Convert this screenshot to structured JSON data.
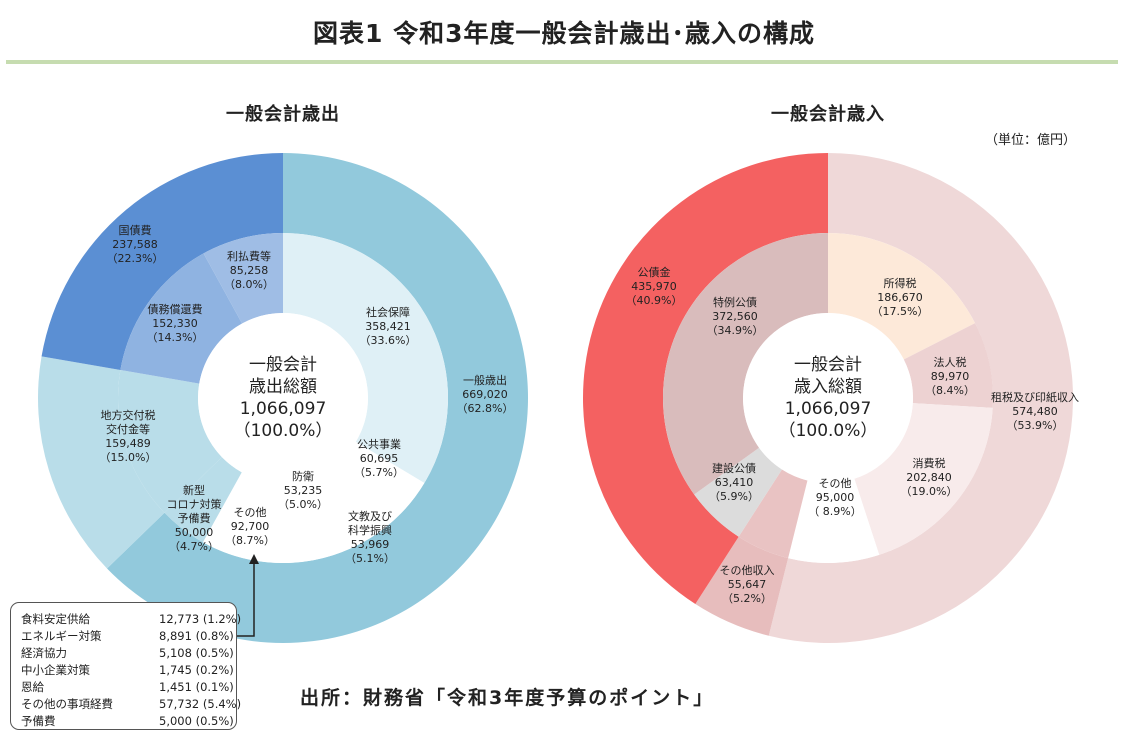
{
  "title": "図表1 令和3年度一般会計歳出･歳入の構成",
  "unit_note": "（単位：億円）",
  "source": "出所：財務省「令和3年度予算のポイント」",
  "colors": {
    "title_rule": "#c6dcb0",
    "exp_outer_general": "#92c9dc",
    "exp_outer_debt": "#5b8fd3",
    "exp_outer_local": "#b9dde9",
    "exp_inner_social": "#dff0f6",
    "exp_inner_interest": "#9fbde5",
    "exp_inner_debt_repay": "#8fb3e1",
    "exp_inner_local": "#b9dde9",
    "exp_inner_covid": "#b9dde9",
    "exp_inner_white": "#ffffff",
    "rev_outer_bonds": "#f46161",
    "rev_outer_tax": "#efd8d8",
    "rev_outer_other": "#e7bdbd",
    "rev_inner_special": "#d9bcbc",
    "rev_inner_income": "#fde9d9",
    "rev_inner_corp": "#edd2d2",
    "rev_inner_consumption": "#f8ebeb",
    "rev_inner_other_tax": "#ffffff",
    "rev_inner_other_rev": "#e9c3c3",
    "rev_inner_construction": "#dcdcdc"
  },
  "chart_data": [
    {
      "type": "pie",
      "title": "一般会計歳出",
      "center": {
        "line1": "一般会計",
        "line2": "歳出総額",
        "value": "1,066,097",
        "pct": "（100.0%）"
      },
      "outer": [
        {
          "name": "一般歳出",
          "value": 669020,
          "value_label": "669,020",
          "pct": "（62.8%）",
          "color": "#92c9dc"
        },
        {
          "name": "地方交付税交付金等",
          "value": 159489,
          "value_label": "159,489",
          "pct": "（15.0%）",
          "color": "#b9dde9"
        },
        {
          "name": "国債費",
          "value": 237588,
          "value_label": "237,588",
          "pct": "（22.3%）",
          "color": "#5b8fd3"
        }
      ],
      "inner": [
        {
          "name": "社会保障",
          "value": 358421,
          "value_label": "358,421",
          "pct": "（33.6%）",
          "color": "#dff0f6"
        },
        {
          "name": "公共事業",
          "value": 60695,
          "value_label": "60,695",
          "pct": "（5.7%）",
          "color": "#ffffff"
        },
        {
          "name": "文教及び科学振興",
          "value": 53969,
          "value_label": "53,969",
          "pct": "（5.1%）",
          "color": "#ffffff"
        },
        {
          "name": "防衛",
          "value": 53235,
          "value_label": "53,235",
          "pct": "（5.0%）",
          "color": "#ffffff"
        },
        {
          "name": "その他",
          "value": 92700,
          "value_label": "92,700",
          "pct": "（8.7%）",
          "color": "#ffffff"
        },
        {
          "name": "新型コロナ対策予備費",
          "value": 50000,
          "value_label": "50,000",
          "pct": "（4.7%）",
          "color": "#b9dde9"
        },
        {
          "name": "地方交付税交付金等",
          "value": 159489,
          "value_label": "",
          "pct": "",
          "color": "#b9dde9"
        },
        {
          "name": "債務償還費",
          "value": 152330,
          "value_label": "152,330",
          "pct": "（14.3%）",
          "color": "#8fb3e1"
        },
        {
          "name": "利払費等",
          "value": 85258,
          "value_label": "85,258",
          "pct": "（8.0%）",
          "color": "#9fbde5"
        }
      ],
      "labels": {
        "general": [
          "一般歳出",
          "669,020",
          "（62.8%）"
        ],
        "local": [
          "地方交付税",
          "交付金等",
          "159,489",
          "（15.0%）"
        ],
        "debt": [
          "国債費",
          "237,588",
          "（22.3%）"
        ],
        "social": [
          "社会保障",
          "358,421",
          "（33.6%）"
        ],
        "public_works": [
          "公共事業",
          "60,695",
          "（5.7%）"
        ],
        "education": [
          "文教及び",
          "科学振興",
          "53,969",
          "（5.1%）"
        ],
        "defense": [
          "防衛",
          "53,235",
          "（5.0%）"
        ],
        "other": [
          "その他",
          "92,700",
          "（8.7%）"
        ],
        "covid": [
          "新型",
          "コロナ対策",
          "予備費",
          "50,000",
          "（4.7%）"
        ],
        "repay": [
          "債務償還費",
          "152,330",
          "（14.3%）"
        ],
        "interest": [
          "利払費等",
          "85,258",
          "（8.0%）"
        ]
      }
    },
    {
      "type": "pie",
      "title": "一般会計歳入",
      "center": {
        "line1": "一般会計",
        "line2": "歳入総額",
        "value": "1,066,097",
        "pct": "（100.0%）"
      },
      "outer": [
        {
          "name": "租税及び印紙収入",
          "value": 574480,
          "value_label": "574,480",
          "pct": "（53.9%）",
          "color": "#efd8d8"
        },
        {
          "name": "その他収入",
          "value": 55647,
          "value_label": "55,647",
          "pct": "（5.2%）",
          "color": "#e7bdbd"
        },
        {
          "name": "公債金",
          "value": 435970,
          "value_label": "435,970",
          "pct": "（40.9%）",
          "color": "#f46161"
        }
      ],
      "inner": [
        {
          "name": "所得税",
          "value": 186670,
          "value_label": "186,670",
          "pct": "（17.5%）",
          "color": "#fde9d9"
        },
        {
          "name": "法人税",
          "value": 89970,
          "value_label": "89,970",
          "pct": "（8.4%）",
          "color": "#edd2d2"
        },
        {
          "name": "消費税",
          "value": 202840,
          "value_label": "202,840",
          "pct": "（19.0%）",
          "color": "#f8ebeb"
        },
        {
          "name": "その他",
          "value": 95000,
          "value_label": "95,000",
          "pct": "（ 8.9%）",
          "color": "#ffffff"
        },
        {
          "name": "その他収入",
          "value": 55647,
          "value_label": "",
          "pct": "",
          "color": "#e9c3c3"
        },
        {
          "name": "建設公債",
          "value": 63410,
          "value_label": "63,410",
          "pct": "（5.9%）",
          "color": "#dcdcdc"
        },
        {
          "name": "特例公債",
          "value": 372560,
          "value_label": "372,560",
          "pct": "（34.9%）",
          "color": "#d9bcbc"
        }
      ],
      "labels": {
        "bonds": [
          "公債金",
          "435,970",
          "（40.9%）"
        ],
        "tax_total": [
          "租税及び印紙収入",
          "574,480",
          "（53.9%）"
        ],
        "other_rev": [
          "その他収入",
          "55,647",
          "（5.2%）"
        ],
        "income": [
          "所得税",
          "186,670",
          "（17.5%）"
        ],
        "corp": [
          "法人税",
          "89,970",
          "（8.4%）"
        ],
        "consumption": [
          "消費税",
          "202,840",
          "（19.0%）"
        ],
        "other_tax": [
          "その他",
          "95,000",
          "（ 8.9%）"
        ],
        "construction": [
          "建設公債",
          "63,410",
          "（5.9%）"
        ],
        "special": [
          "特例公債",
          "372,560",
          "（34.9%）"
        ]
      }
    }
  ],
  "notes": [
    {
      "name": "食料安定供給",
      "value": "12,773 (1.2%)"
    },
    {
      "name": "エネルギー対策",
      "value": "8,891 (0.8%)"
    },
    {
      "name": "経済協力",
      "value": "5,108 (0.5%)"
    },
    {
      "name": "中小企業対策",
      "value": "1,745 (0.2%)"
    },
    {
      "name": "恩給",
      "value": "1,451 (0.1%)"
    },
    {
      "name": "その他の事項経費",
      "value": "57,732 (5.4%)"
    },
    {
      "name": "予備費",
      "value": "5,000 (0.5%)"
    }
  ]
}
